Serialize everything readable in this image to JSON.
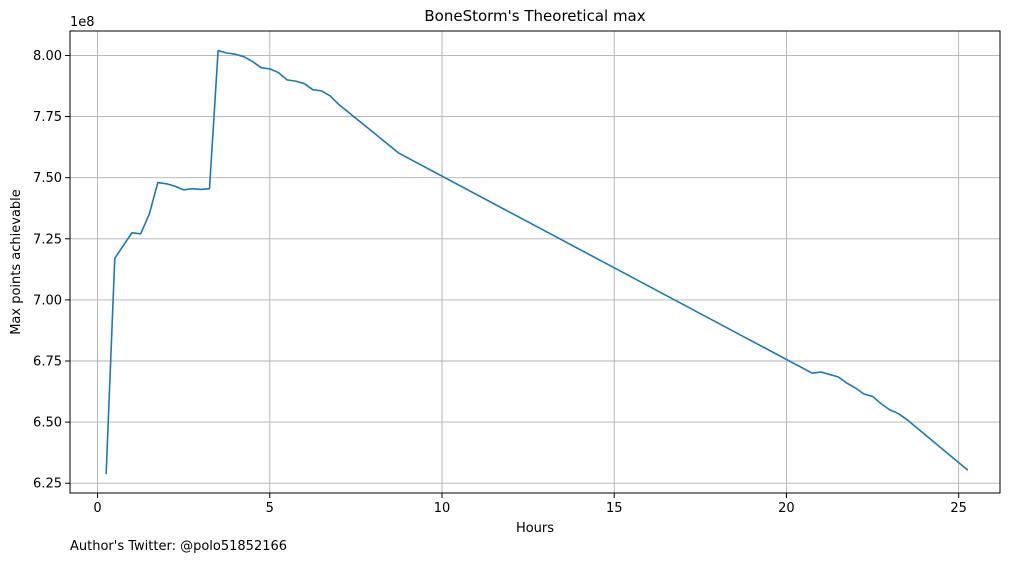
{
  "chart_data": {
    "type": "line",
    "title": "BoneStorm's Theoretical max",
    "xlabel": "Hours",
    "ylabel": "Max points achievable",
    "y_offset_label": "1e8",
    "footer_note": "Author's Twitter: @polo51852166",
    "xlim": [
      -0.8,
      26.2
    ],
    "ylim": [
      621000000.0,
      810000000.0
    ],
    "x_ticks": [
      0,
      5,
      10,
      15,
      20,
      25
    ],
    "x_tick_labels": [
      "0",
      "5",
      "10",
      "15",
      "20",
      "25"
    ],
    "y_ticks": [
      625000000.0,
      650000000.0,
      675000000.0,
      700000000.0,
      725000000.0,
      750000000.0,
      775000000.0,
      800000000.0
    ],
    "y_tick_labels": [
      "6.25",
      "6.50",
      "6.75",
      "7.00",
      "7.25",
      "7.50",
      "7.75",
      "8.00"
    ],
    "grid": true,
    "colors": {
      "series": "#1f77b4",
      "grid": "#b0b0b0",
      "axes": "#000000"
    },
    "series": [
      {
        "x": [
          0.25,
          0.5,
          1.0,
          1.25,
          1.5,
          1.75,
          2.0,
          2.25,
          2.5,
          2.75,
          3.0,
          3.25,
          3.5,
          3.75,
          4.0,
          4.25,
          4.5,
          4.75,
          5.0,
          5.25,
          5.5,
          5.75,
          6.0,
          6.25,
          6.5,
          6.75,
          7.0,
          8.75,
          20.75,
          21.0,
          21.25,
          21.5,
          21.75,
          22.0,
          22.25,
          22.5,
          22.75,
          23.0,
          23.25,
          23.5,
          25.25
        ],
        "y": [
          629000000.0,
          717000000.0,
          727500000.0,
          727000000.0,
          735000000.0,
          748000000.0,
          747500000.0,
          746500000.0,
          745000000.0,
          745500000.0,
          745200000.0,
          745500000.0,
          802000000.0,
          801000000.0,
          800500000.0,
          799500000.0,
          797500000.0,
          795000000.0,
          794500000.0,
          793000000.0,
          790000000.0,
          789500000.0,
          788500000.0,
          786000000.0,
          785500000.0,
          783500000.0,
          780000000.0,
          760000000.0,
          670000000.0,
          670500000.0,
          669500000.0,
          668500000.0,
          666000000.0,
          664000000.0,
          661500000.0,
          660500000.0,
          657500000.0,
          655000000.0,
          653500000.0,
          651000000.0,
          630500000.0
        ]
      }
    ]
  }
}
